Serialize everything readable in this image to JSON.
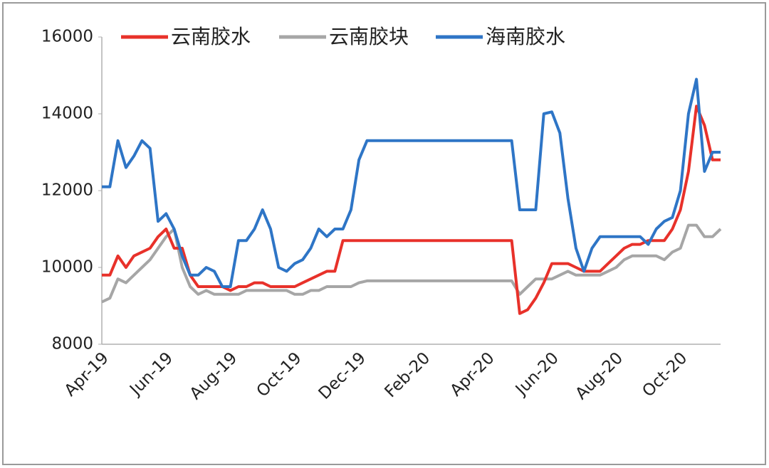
{
  "chart_data": {
    "type": "line",
    "categories": [
      "Apr-19",
      null,
      null,
      null,
      null,
      null,
      null,
      null,
      "Jun-19",
      null,
      null,
      null,
      null,
      null,
      null,
      null,
      "Aug-19",
      null,
      null,
      null,
      null,
      null,
      null,
      null,
      "Oct-19",
      null,
      null,
      null,
      null,
      null,
      null,
      null,
      "Dec-19",
      null,
      null,
      null,
      null,
      null,
      null,
      null,
      "Feb-20",
      null,
      null,
      null,
      null,
      null,
      null,
      null,
      "Apr-20",
      null,
      null,
      null,
      null,
      null,
      null,
      null,
      "Jun-20",
      null,
      null,
      null,
      null,
      null,
      null,
      null,
      "Aug-20",
      null,
      null,
      null,
      null,
      null,
      null,
      null,
      "Oct-20",
      null,
      null,
      null,
      null,
      null
    ],
    "series": [
      {
        "name": "云南胶水",
        "color": "#e8312a",
        "values": [
          9800,
          9800,
          10300,
          10000,
          10300,
          10400,
          10500,
          10800,
          11000,
          10500,
          10500,
          9800,
          9500,
          9500,
          9500,
          9500,
          9400,
          9500,
          9500,
          9600,
          9600,
          9500,
          9500,
          9500,
          9500,
          9600,
          9700,
          9800,
          9900,
          9900,
          10700,
          10700,
          10700,
          10700,
          10700,
          10700,
          10700,
          10700,
          10700,
          10700,
          10700,
          10700,
          10700,
          10700,
          10700,
          10700,
          10700,
          10700,
          10700,
          10700,
          10700,
          10700,
          8800,
          8900,
          9200,
          9600,
          10100,
          10100,
          10100,
          10000,
          9900,
          9900,
          9900,
          10100,
          10300,
          10500,
          10600,
          10600,
          10700,
          10700,
          10700,
          11000,
          11500,
          12500,
          14200,
          13700,
          12800,
          12800
        ]
      },
      {
        "name": "云南胶块",
        "color": "#a6a6a6",
        "values": [
          9100,
          9200,
          9700,
          9600,
          9800,
          10000,
          10200,
          10500,
          10800,
          11000,
          10000,
          9500,
          9300,
          9400,
          9300,
          9300,
          9300,
          9300,
          9400,
          9400,
          9400,
          9400,
          9400,
          9400,
          9300,
          9300,
          9400,
          9400,
          9500,
          9500,
          9500,
          9500,
          9600,
          9650,
          9650,
          9650,
          9650,
          9650,
          9650,
          9650,
          9650,
          9650,
          9650,
          9650,
          9650,
          9650,
          9650,
          9650,
          9650,
          9650,
          9650,
          9650,
          9300,
          9500,
          9700,
          9700,
          9700,
          9800,
          9900,
          9800,
          9800,
          9800,
          9800,
          9900,
          10000,
          10200,
          10300,
          10300,
          10300,
          10300,
          10200,
          10400,
          10500,
          11100,
          11100,
          10800,
          10800,
          11000
        ]
      },
      {
        "name": "海南胶水",
        "color": "#2e75c6",
        "values": [
          12100,
          12100,
          13300,
          12600,
          12900,
          13300,
          13100,
          11200,
          11400,
          11000,
          10300,
          9800,
          9800,
          10000,
          9900,
          9500,
          9500,
          10700,
          10700,
          11000,
          11500,
          11000,
          10000,
          9900,
          10100,
          10200,
          10500,
          11000,
          10800,
          11000,
          11000,
          11500,
          12800,
          13300,
          13300,
          13300,
          13300,
          13300,
          13300,
          13300,
          13300,
          13300,
          13300,
          13300,
          13300,
          13300,
          13300,
          13300,
          13300,
          13300,
          13300,
          13300,
          11500,
          11500,
          11500,
          14000,
          14050,
          13500,
          11800,
          10500,
          9900,
          10500,
          10800,
          10800,
          10800,
          10800,
          10800,
          10800,
          10600,
          11000,
          11200,
          11300,
          12000,
          14000,
          14900,
          12500,
          13000,
          13000
        ]
      }
    ],
    "ylim": [
      8000,
      16000
    ],
    "yticks": [
      8000,
      10000,
      12000,
      14000,
      16000
    ]
  }
}
